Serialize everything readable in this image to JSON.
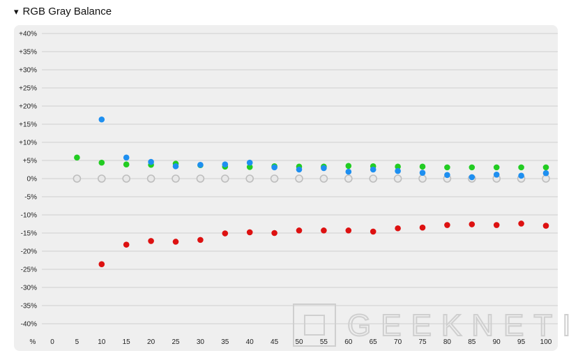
{
  "header": {
    "toggle_icon": "▾",
    "title": "RGB Gray Balance"
  },
  "watermark": {
    "text": "GEEKNETIC"
  },
  "chart_data": {
    "type": "scatter",
    "title": "RGB Gray Balance",
    "x_unit_label": "%",
    "x": [
      0,
      5,
      10,
      15,
      20,
      25,
      30,
      35,
      40,
      45,
      50,
      55,
      60,
      65,
      70,
      75,
      80,
      85,
      90,
      95,
      100
    ],
    "x_tick_labels": [
      "0",
      "5",
      "10",
      "15",
      "20",
      "25",
      "30",
      "35",
      "40",
      "45",
      "50",
      "55",
      "60",
      "65",
      "70",
      "75",
      "80",
      "85",
      "90",
      "95",
      "100"
    ],
    "y_tick_labels": [
      "+40%",
      "+35%",
      "+30%",
      "+25%",
      "+20%",
      "+15%",
      "+10%",
      "+5%",
      "0%",
      "-5%",
      "-10%",
      "-15%",
      "-20%",
      "-25%",
      "-30%",
      "-35%",
      "-40%"
    ],
    "y_ticks": [
      40,
      35,
      30,
      25,
      20,
      15,
      10,
      5,
      0,
      -5,
      -10,
      -15,
      -20,
      -25,
      -30,
      -35,
      -40
    ],
    "ylim": [
      -40,
      40
    ],
    "grid": true,
    "legend": "none",
    "series": [
      {
        "color": "#e8e8e8",
        "stroke": "#bdbdbd",
        "hollow": true,
        "points": [
          [
            5,
            0
          ],
          [
            10,
            0
          ],
          [
            15,
            0
          ],
          [
            20,
            0
          ],
          [
            25,
            0
          ],
          [
            30,
            0
          ],
          [
            35,
            0
          ],
          [
            40,
            0
          ],
          [
            45,
            0
          ],
          [
            50,
            0
          ],
          [
            55,
            0
          ],
          [
            60,
            0
          ],
          [
            65,
            0
          ],
          [
            70,
            0
          ],
          [
            75,
            0
          ],
          [
            80,
            0
          ],
          [
            85,
            0
          ],
          [
            90,
            0
          ],
          [
            95,
            0
          ],
          [
            100,
            0
          ]
        ]
      },
      {
        "color": "#22cc22",
        "points": [
          [
            5,
            5.8
          ],
          [
            10,
            4.4
          ],
          [
            15,
            3.9
          ],
          [
            20,
            3.8
          ],
          [
            25,
            4.1
          ],
          [
            30,
            3.7
          ],
          [
            35,
            3.3
          ],
          [
            40,
            3.2
          ],
          [
            45,
            3.4
          ],
          [
            50,
            3.3
          ],
          [
            55,
            3.3
          ],
          [
            60,
            3.5
          ],
          [
            65,
            3.4
          ],
          [
            70,
            3.3
          ],
          [
            75,
            3.3
          ],
          [
            80,
            3.1
          ],
          [
            85,
            3.1
          ],
          [
            90,
            3.1
          ],
          [
            95,
            3.1
          ],
          [
            100,
            3.1
          ]
        ]
      },
      {
        "color": "#1e8ff0",
        "points": [
          [
            10,
            16.3
          ],
          [
            15,
            5.8
          ],
          [
            20,
            4.6
          ],
          [
            25,
            3.4
          ],
          [
            30,
            3.8
          ],
          [
            35,
            3.9
          ],
          [
            40,
            4.4
          ],
          [
            45,
            3.1
          ],
          [
            50,
            2.5
          ],
          [
            55,
            2.9
          ],
          [
            60,
            1.9
          ],
          [
            65,
            2.5
          ],
          [
            70,
            2.1
          ],
          [
            75,
            1.6
          ],
          [
            80,
            1.0
          ],
          [
            85,
            0.4
          ],
          [
            90,
            1.1
          ],
          [
            95,
            0.8
          ],
          [
            100,
            1.5
          ]
        ]
      },
      {
        "color": "#dd1111",
        "points": [
          [
            10,
            -23.6
          ],
          [
            15,
            -18.2
          ],
          [
            20,
            -17.2
          ],
          [
            25,
            -17.4
          ],
          [
            30,
            -16.9
          ],
          [
            35,
            -15.1
          ],
          [
            40,
            -14.8
          ],
          [
            45,
            -15.0
          ],
          [
            50,
            -14.3
          ],
          [
            55,
            -14.3
          ],
          [
            60,
            -14.3
          ],
          [
            65,
            -14.6
          ],
          [
            70,
            -13.7
          ],
          [
            75,
            -13.5
          ],
          [
            80,
            -12.8
          ],
          [
            85,
            -12.6
          ],
          [
            90,
            -12.8
          ],
          [
            95,
            -12.4
          ],
          [
            100,
            -13.0
          ]
        ]
      }
    ]
  }
}
